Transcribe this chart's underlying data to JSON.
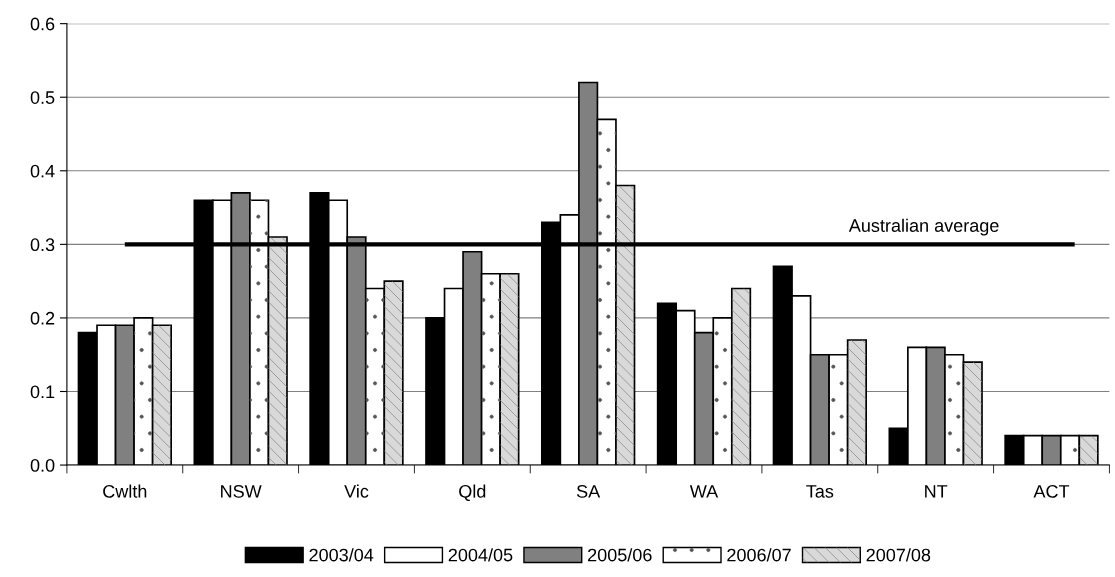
{
  "chart_data": {
    "type": "bar",
    "categories": [
      "Cwlth",
      "NSW",
      "Vic",
      "Qld",
      "SA",
      "WA",
      "Tas",
      "NT",
      "ACT"
    ],
    "series": [
      {
        "name": "2003/04",
        "color": "#000000",
        "values": [
          0.18,
          0.36,
          0.37,
          0.2,
          0.33,
          0.22,
          0.27,
          0.05,
          0.04
        ]
      },
      {
        "name": "2004/05",
        "color": "#ffffff",
        "values": [
          0.19,
          0.36,
          0.36,
          0.24,
          0.34,
          0.21,
          0.23,
          0.16,
          0.04
        ]
      },
      {
        "name": "2005/06",
        "color": "#808080",
        "values": [
          0.19,
          0.37,
          0.31,
          0.29,
          0.52,
          0.18,
          0.15,
          0.16,
          0.04
        ]
      },
      {
        "name": "2006/07",
        "color": "#ffffff",
        "values": [
          0.2,
          0.36,
          0.24,
          0.26,
          0.47,
          0.2,
          0.15,
          0.15,
          0.04
        ]
      },
      {
        "name": "2007/08",
        "color": "#d9d9d9",
        "values": [
          0.19,
          0.31,
          0.25,
          0.26,
          0.38,
          0.24,
          0.17,
          0.14,
          0.04
        ]
      }
    ],
    "ylim": [
      0,
      0.6
    ],
    "yticks": [
      {
        "value": 0,
        "label": "0.0"
      },
      0.1,
      0.2,
      0.3,
      0.4,
      0.5,
      0.6
    ],
    "grid": "y",
    "legend": "bottom",
    "ref_lines": [
      {
        "axis": "y",
        "value": 0.3,
        "label": "Australian average",
        "color": "#000000"
      }
    ]
  }
}
